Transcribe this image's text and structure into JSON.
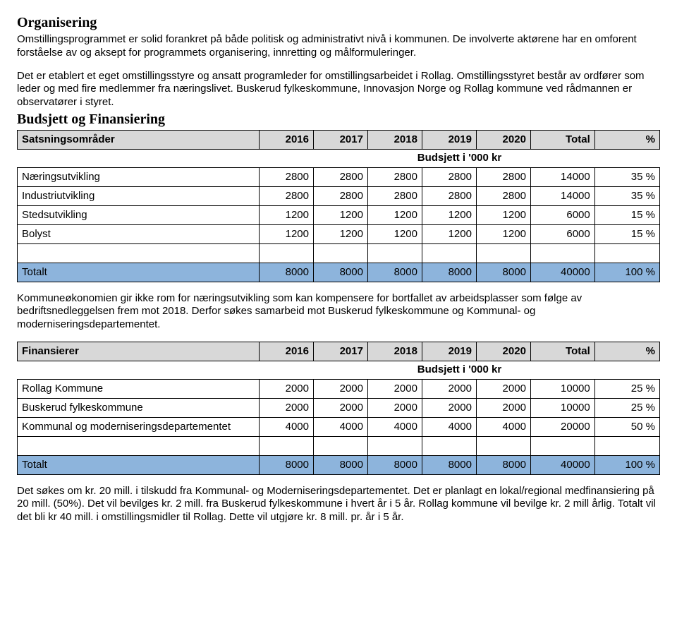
{
  "section1": {
    "title": "Organisering",
    "para1": "Omstillingsprogrammet er solid forankret på både politisk og administrativt nivå i kommunen. De involverte aktørene har en omforent forståelse av og aksept for programmets organisering, innretting og målformuleringer.",
    "para2": "Det er etablert et eget omstillingsstyre og ansatt programleder for omstillingsarbeidet i Rollag. Omstillingsstyret består av ordfører som leder og med fire medlemmer fra næringslivet. Buskerud fylkeskommune, Innovasjon Norge og Rollag kommune ved rådmannen er observatører i styret."
  },
  "section2": {
    "title": "Budsjett og Finansiering",
    "caption": "Budsjett i '000 kr",
    "headers": [
      "Satsningsområder",
      "2016",
      "2017",
      "2018",
      "2019",
      "2020",
      "Total",
      "%"
    ],
    "rows": [
      {
        "label": "Næringsutvikling",
        "v": [
          "2800",
          "2800",
          "2800",
          "2800",
          "2800",
          "14000",
          "35 %"
        ]
      },
      {
        "label": "Industriutvikling",
        "v": [
          "2800",
          "2800",
          "2800",
          "2800",
          "2800",
          "14000",
          "35 %"
        ]
      },
      {
        "label": "Stedsutvikling",
        "v": [
          "1200",
          "1200",
          "1200",
          "1200",
          "1200",
          "6000",
          "15 %"
        ]
      },
      {
        "label": "Bolyst",
        "v": [
          "1200",
          "1200",
          "1200",
          "1200",
          "1200",
          "6000",
          "15 %"
        ]
      }
    ],
    "total": {
      "label": "Totalt",
      "v": [
        "8000",
        "8000",
        "8000",
        "8000",
        "8000",
        "40000",
        "100 %"
      ]
    },
    "colors": {
      "header_bg": "#d8d8d8",
      "total_bg": "#8db4dc",
      "border": "#000000"
    }
  },
  "midtext": "Kommuneøkonomien gir ikke rom for næringsutvikling som kan kompensere for bortfallet av arbeidsplasser som følge av bedriftsnedleggelsen frem mot 2018. Derfor søkes samarbeid mot Buskerud fylkeskommune og Kommunal- og moderniseringsdepartementet.",
  "table2": {
    "caption": "Budsjett i '000 kr",
    "headers": [
      "Finansierer",
      "2016",
      "2017",
      "2018",
      "2019",
      "2020",
      "Total",
      "%"
    ],
    "rows": [
      {
        "label": "Rollag Kommune",
        "v": [
          "2000",
          "2000",
          "2000",
          "2000",
          "2000",
          "10000",
          "25 %"
        ]
      },
      {
        "label": "Buskerud fylkeskommune",
        "v": [
          "2000",
          "2000",
          "2000",
          "2000",
          "2000",
          "10000",
          "25 %"
        ]
      },
      {
        "label": "Kommunal og moderniseringsdepartementet",
        "v": [
          "4000",
          "4000",
          "4000",
          "4000",
          "4000",
          "20000",
          "50 %"
        ]
      }
    ],
    "total": {
      "label": "Totalt",
      "v": [
        "8000",
        "8000",
        "8000",
        "8000",
        "8000",
        "40000",
        "100 %"
      ]
    }
  },
  "closing": "Det søkes om kr. 20 mill. i tilskudd fra Kommunal- og Moderniseringsdepartementet. Det er planlagt en lokal/regional medfinansiering på 20 mill. (50%). Det vil bevilges kr. 2 mill. fra Buskerud fylkeskommune i hvert år i 5 år. Rollag kommune vil bevilge kr. 2 mill årlig. Totalt vil det bli kr 40 mill. i omstillingsmidler til Rollag. Dette vil utgjøre kr. 8 mill. pr. år i 5 år."
}
